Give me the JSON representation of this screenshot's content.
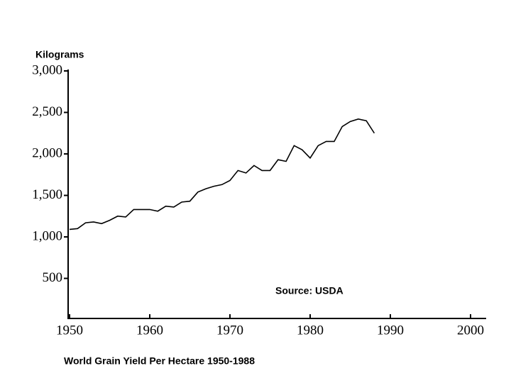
{
  "chart_data": {
    "type": "line",
    "title": "World Grain Yield Per Hectare 1950-1988",
    "y_label": "Kilograms",
    "annotation": "Source: USDA",
    "x": [
      1950,
      1951,
      1952,
      1953,
      1954,
      1955,
      1956,
      1957,
      1958,
      1959,
      1960,
      1961,
      1962,
      1963,
      1964,
      1965,
      1966,
      1967,
      1968,
      1969,
      1970,
      1971,
      1972,
      1973,
      1974,
      1975,
      1976,
      1977,
      1978,
      1979,
      1980,
      1981,
      1982,
      1983,
      1984,
      1985,
      1986,
      1987,
      1988
    ],
    "values": [
      1090,
      1100,
      1170,
      1180,
      1160,
      1200,
      1250,
      1240,
      1330,
      1330,
      1330,
      1310,
      1370,
      1360,
      1420,
      1430,
      1540,
      1580,
      1610,
      1630,
      1680,
      1800,
      1770,
      1860,
      1800,
      1800,
      1930,
      1910,
      2100,
      2050,
      1950,
      2100,
      2150,
      2150,
      2330,
      2390,
      2420,
      2400,
      2250
    ],
    "color": "#000000",
    "xlim": [
      1950,
      2000
    ],
    "xticks": [
      1950,
      1960,
      1970,
      1980,
      1990,
      2000
    ],
    "ylim": [
      0,
      3000
    ],
    "yticks": [
      {
        "value": 500,
        "label": "500"
      },
      {
        "value": 1000,
        "label": "1,000"
      },
      {
        "value": 1500,
        "label": "1,500"
      },
      {
        "value": 2000,
        "label": "2,000"
      },
      {
        "value": 2500,
        "label": "2,500"
      },
      {
        "value": 3000,
        "label": "3,000"
      }
    ],
    "grid": false
  }
}
